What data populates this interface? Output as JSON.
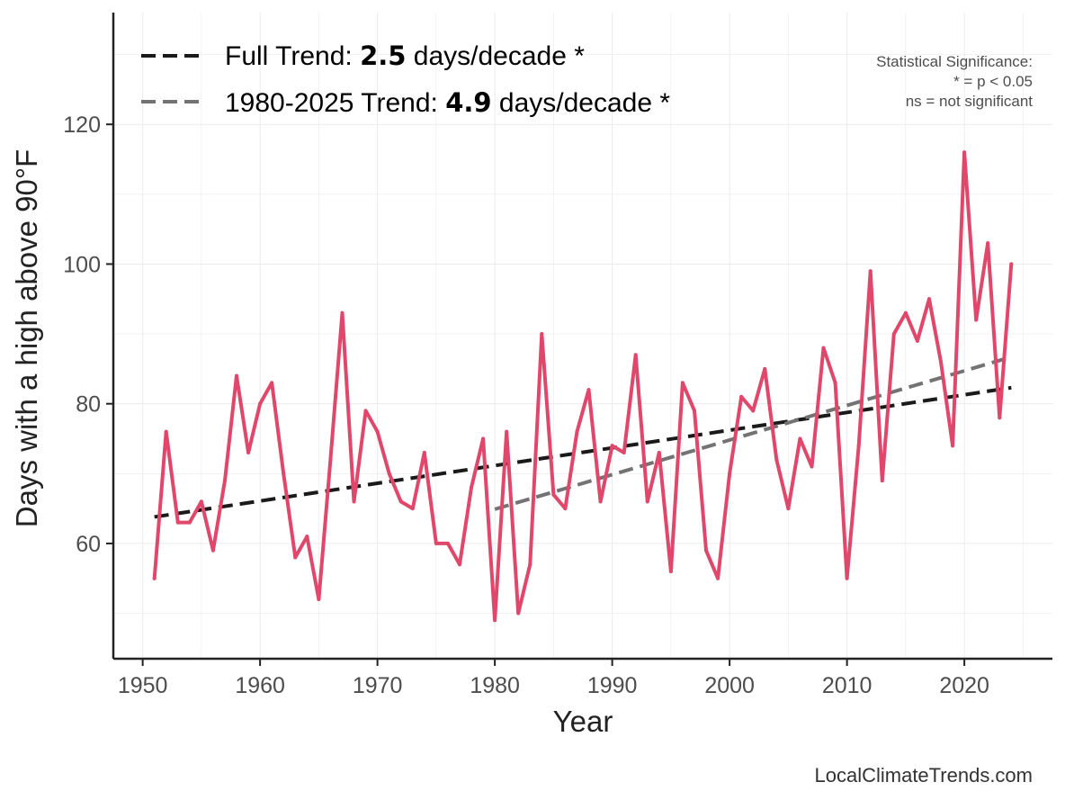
{
  "chart_data": {
    "type": "line",
    "xlabel": "Year",
    "ylabel": "Days with a high above 90°F",
    "xlim": [
      1947.5,
      2027.5
    ],
    "ylim": [
      43.5,
      136
    ],
    "x_ticks": [
      1950,
      1960,
      1970,
      1980,
      1990,
      2000,
      2010,
      2020
    ],
    "y_ticks": [
      60,
      80,
      100,
      120
    ],
    "grid": true,
    "colors": {
      "series": "#e0476b",
      "full_trend": "#1a1a1a",
      "recent_trend": "#737373",
      "axis": "#222222",
      "grid": "#ebebeb"
    },
    "series": [
      {
        "name": "Days with a high above 90°F",
        "x": [
          1951,
          1952,
          1953,
          1954,
          1955,
          1956,
          1957,
          1958,
          1959,
          1960,
          1961,
          1962,
          1963,
          1964,
          1965,
          1966,
          1967,
          1968,
          1969,
          1970,
          1971,
          1972,
          1973,
          1974,
          1975,
          1976,
          1977,
          1978,
          1979,
          1980,
          1981,
          1982,
          1983,
          1984,
          1985,
          1986,
          1987,
          1988,
          1989,
          1990,
          1991,
          1992,
          1993,
          1994,
          1995,
          1996,
          1997,
          1998,
          1999,
          2000,
          2001,
          2002,
          2003,
          2004,
          2005,
          2006,
          2007,
          2008,
          2009,
          2010,
          2011,
          2012,
          2013,
          2014,
          2015,
          2016,
          2017,
          2018,
          2019,
          2020,
          2021,
          2022,
          2023,
          2024
        ],
        "values": [
          55,
          76,
          63,
          63,
          66,
          59,
          69,
          84,
          73,
          80,
          83,
          70,
          58,
          61,
          52,
          72,
          93,
          66,
          79,
          76,
          70,
          66,
          65,
          73,
          60,
          60,
          57,
          68,
          75,
          49,
          76,
          50,
          57,
          90,
          67,
          65,
          76,
          82,
          66,
          74,
          73,
          87,
          66,
          73,
          56,
          83,
          79,
          59,
          55,
          70,
          81,
          79,
          85,
          72,
          65,
          75,
          71,
          88,
          83,
          55,
          74,
          99,
          69,
          90,
          93,
          89,
          95,
          86,
          74,
          116,
          92,
          103,
          78,
          100
        ]
      }
    ],
    "trends": [
      {
        "name": "Full Trend",
        "x": [
          1951,
          2024
        ],
        "values": [
          63.8,
          82.3
        ],
        "rate": "2.5",
        "significance": "*"
      },
      {
        "name": "1980-2025 Trend",
        "x": [
          1980,
          2024
        ],
        "values": [
          64.9,
          86.7
        ],
        "rate": "4.9",
        "significance": "*"
      }
    ]
  },
  "legend": {
    "full": {
      "prefix": "Full Trend: ",
      "value": "2.5",
      "suffix": " days/decade *"
    },
    "recent": {
      "prefix": "1980-2025 Trend: ",
      "value": "4.9",
      "suffix": " days/decade *"
    }
  },
  "significance": {
    "title": "Statistical Significance:",
    "line1": "* = p < 0.05",
    "line2": "ns = not significant"
  },
  "credit": "LocalClimateTrends.com"
}
